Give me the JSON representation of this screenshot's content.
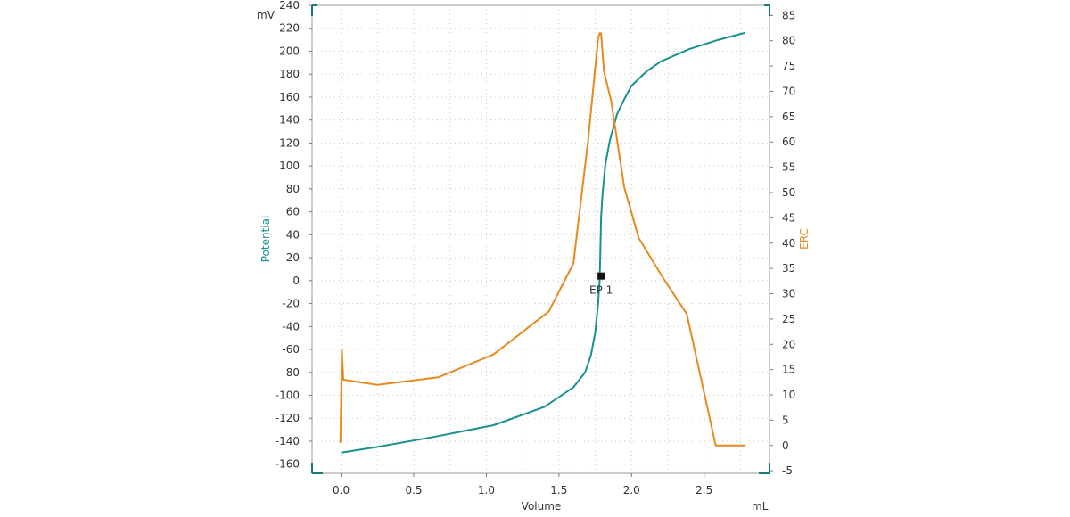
{
  "chart_data": {
    "type": "line",
    "xlabel": "Volume",
    "x_unit": "mL",
    "xlim": [
      -0.2,
      2.95
    ],
    "x_ticks": [
      "0.0",
      "0.5",
      "1.0",
      "1.5",
      "2.0",
      "2.5"
    ],
    "y_left": {
      "label": "Potential",
      "unit": "mV",
      "ylim": [
        -168,
        240
      ],
      "ticks": [
        240,
        220,
        200,
        180,
        160,
        140,
        120,
        100,
        80,
        60,
        40,
        20,
        0,
        -20,
        -40,
        -60,
        -80,
        -100,
        -120,
        -140,
        -160
      ],
      "color": "#1a9090"
    },
    "y_right": {
      "label": "ERC",
      "ylim": [
        -5.5,
        87
      ],
      "ticks": [
        85,
        80,
        75,
        70,
        65,
        60,
        55,
        50,
        45,
        40,
        35,
        30,
        25,
        20,
        15,
        10,
        5,
        0,
        -5
      ],
      "color": "#e8891e"
    },
    "grid": true,
    "series": [
      {
        "name": "Potential",
        "axis": "left",
        "color": "#1a9090",
        "x": [
          0.0,
          0.25,
          0.65,
          1.05,
          1.4,
          1.6,
          1.68,
          1.72,
          1.75,
          1.77,
          1.78,
          1.785,
          1.79,
          1.8,
          1.82,
          1.85,
          1.9,
          1.95,
          2.0,
          2.1,
          2.2,
          2.4,
          2.6,
          2.78
        ],
        "y": [
          -150,
          -145,
          -136,
          -126,
          -110,
          -93,
          -80,
          -65,
          -45,
          -20,
          0,
          25,
          55,
          75,
          102,
          122,
          145,
          158,
          170,
          182,
          191,
          202,
          210,
          216
        ]
      },
      {
        "name": "ERC",
        "axis": "right",
        "color": "#e8891e",
        "x": [
          -0.005,
          0.005,
          0.015,
          0.25,
          0.67,
          1.05,
          1.43,
          1.6,
          1.7,
          1.77,
          1.78,
          1.79,
          1.81,
          1.86,
          1.95,
          2.05,
          2.22,
          2.38,
          2.58,
          2.78
        ],
        "y": [
          0.5,
          19,
          13,
          12,
          13.5,
          18,
          26.5,
          36,
          60,
          80.5,
          81.5,
          81.5,
          74,
          68,
          51,
          41,
          33,
          26,
          0,
          0
        ]
      }
    ],
    "annotations": [
      {
        "label": "EP 1",
        "x": 1.79,
        "y": 4
      }
    ]
  }
}
